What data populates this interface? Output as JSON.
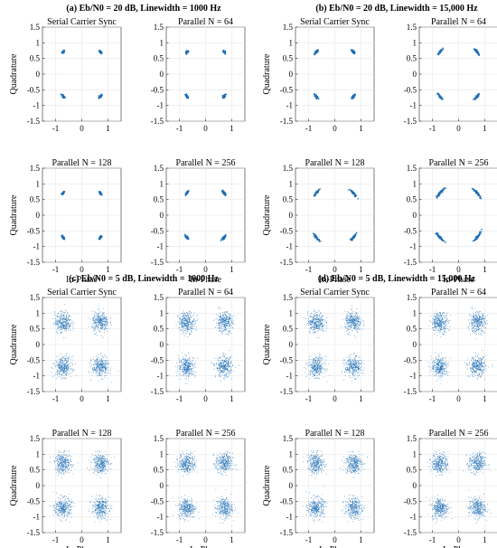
{
  "point_color": "#1f6fb4",
  "axis_common": {
    "xlim": [
      -1.5,
      1.5
    ],
    "ylim": [
      -1.5,
      1.5
    ],
    "x_ticks": [
      -1,
      0,
      1
    ],
    "x_tick_labels": [
      "-1",
      "0",
      "1"
    ],
    "y_ticks": [
      1.5,
      1,
      0.5,
      0,
      -0.5,
      -1,
      -1.5
    ],
    "y_tick_labels": [
      "1.5",
      "1",
      "0.5",
      "0",
      "-0.5",
      "-1",
      "-1.5"
    ],
    "grid": true,
    "xlabel": "In-Phase",
    "ylabel": "Quadrature"
  },
  "chart_data": [
    {
      "type": "scatter",
      "group_title": "(a) Eb/N0 = 20 dB, Linewidth = 1000 Hz",
      "subplots": [
        {
          "title": "Serial Carrier Sync",
          "centers": [
            [
              -0.71,
              0.71
            ],
            [
              0.71,
              0.71
            ],
            [
              -0.71,
              -0.71
            ],
            [
              0.71,
              -0.71
            ]
          ],
          "spread": 0.03,
          "phase_tilt_deg": 3
        },
        {
          "title": "Parallel N = 64",
          "centers": [
            [
              -0.71,
              0.71
            ],
            [
              0.71,
              0.71
            ],
            [
              -0.71,
              -0.71
            ],
            [
              0.71,
              -0.71
            ]
          ],
          "spread": 0.03,
          "phase_tilt_deg": 3
        },
        {
          "title": "Parallel N = 128",
          "centers": [
            [
              -0.71,
              0.71
            ],
            [
              0.71,
              0.71
            ],
            [
              -0.71,
              -0.71
            ],
            [
              0.71,
              -0.71
            ]
          ],
          "spread": 0.03,
          "phase_tilt_deg": 3
        },
        {
          "title": "Parallel N = 256",
          "centers": [
            [
              -0.71,
              0.71
            ],
            [
              0.71,
              0.71
            ],
            [
              -0.71,
              -0.71
            ],
            [
              0.71,
              -0.71
            ]
          ],
          "spread": 0.03,
          "phase_tilt_deg": 4
        }
      ]
    },
    {
      "type": "scatter",
      "group_title": "(b) Eb/N0 = 20 dB, Linewidth = 15,000 Hz",
      "subplots": [
        {
          "title": "Serial Carrier Sync",
          "centers": [
            [
              -0.71,
              0.71
            ],
            [
              0.71,
              0.71
            ],
            [
              -0.71,
              -0.71
            ],
            [
              0.71,
              -0.71
            ]
          ],
          "spread": 0.03,
          "phase_tilt_deg": 4
        },
        {
          "title": "Parallel N = 64",
          "centers": [
            [
              -0.71,
              0.71
            ],
            [
              0.71,
              0.71
            ],
            [
              -0.71,
              -0.71
            ],
            [
              0.71,
              -0.71
            ]
          ],
          "spread": 0.03,
          "phase_tilt_deg": 5
        },
        {
          "title": "Parallel N = 128",
          "centers": [
            [
              -0.71,
              0.71
            ],
            [
              0.71,
              0.71
            ],
            [
              -0.71,
              -0.71
            ],
            [
              0.71,
              -0.71
            ]
          ],
          "spread": 0.03,
          "phase_tilt_deg": 7
        },
        {
          "title": "Parallel N = 256",
          "centers": [
            [
              -0.71,
              0.71
            ],
            [
              0.71,
              0.71
            ],
            [
              -0.71,
              -0.71
            ],
            [
              0.71,
              -0.71
            ]
          ],
          "spread": 0.03,
          "phase_tilt_deg": 9
        }
      ]
    },
    {
      "type": "scatter",
      "group_title": "(c) Eb/N0 = 5 dB, Linewidth = 1000 Hz",
      "subplots": [
        {
          "title": "Serial Carrier Sync",
          "centers": [
            [
              -0.71,
              0.71
            ],
            [
              0.71,
              0.71
            ],
            [
              -0.71,
              -0.71
            ],
            [
              0.71,
              -0.71
            ]
          ],
          "spread": 0.16,
          "phase_tilt_deg": 0
        },
        {
          "title": "Parallel N = 64",
          "centers": [
            [
              -0.71,
              0.71
            ],
            [
              0.71,
              0.71
            ],
            [
              -0.71,
              -0.71
            ],
            [
              0.71,
              -0.71
            ]
          ],
          "spread": 0.16,
          "phase_tilt_deg": 0
        },
        {
          "title": "Parallel N = 128",
          "centers": [
            [
              -0.71,
              0.71
            ],
            [
              0.71,
              0.71
            ],
            [
              -0.71,
              -0.71
            ],
            [
              0.71,
              -0.71
            ]
          ],
          "spread": 0.16,
          "phase_tilt_deg": 0
        },
        {
          "title": "Parallel N = 256",
          "centers": [
            [
              -0.71,
              0.71
            ],
            [
              0.71,
              0.71
            ],
            [
              -0.71,
              -0.71
            ],
            [
              0.71,
              -0.71
            ]
          ],
          "spread": 0.16,
          "phase_tilt_deg": 0
        }
      ]
    },
    {
      "type": "scatter",
      "group_title": "(d) Eb/N0 = 5 dB, Linewidth = 15,000 Hz",
      "subplots": [
        {
          "title": "Serial Carrier Sync",
          "centers": [
            [
              -0.71,
              0.71
            ],
            [
              0.71,
              0.71
            ],
            [
              -0.71,
              -0.71
            ],
            [
              0.71,
              -0.71
            ]
          ],
          "spread": 0.16,
          "phase_tilt_deg": 0
        },
        {
          "title": "Parallel N = 64",
          "centers": [
            [
              -0.71,
              0.71
            ],
            [
              0.71,
              0.71
            ],
            [
              -0.71,
              -0.71
            ],
            [
              0.71,
              -0.71
            ]
          ],
          "spread": 0.16,
          "phase_tilt_deg": 0
        },
        {
          "title": "Parallel N = 128",
          "centers": [
            [
              -0.71,
              0.71
            ],
            [
              0.71,
              0.71
            ],
            [
              -0.71,
              -0.71
            ],
            [
              0.71,
              -0.71
            ]
          ],
          "spread": 0.16,
          "phase_tilt_deg": 0
        },
        {
          "title": "Parallel N = 256",
          "centers": [
            [
              -0.71,
              0.71
            ],
            [
              0.71,
              0.71
            ],
            [
              -0.71,
              -0.71
            ],
            [
              0.71,
              -0.71
            ]
          ],
          "spread": 0.16,
          "phase_tilt_deg": 0
        }
      ]
    }
  ]
}
